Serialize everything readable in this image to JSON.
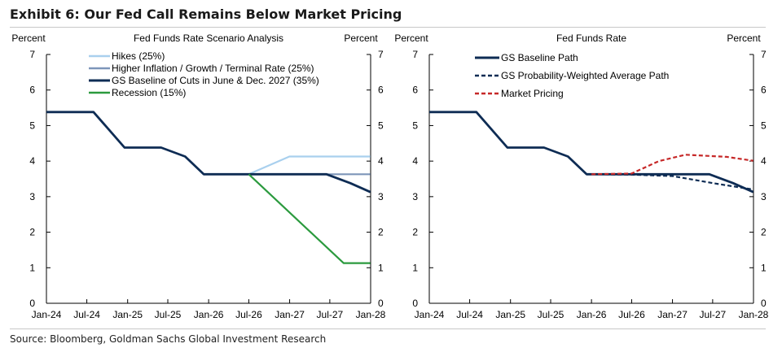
{
  "page": {
    "title": "Exhibit 6: Our Fed Call Remains Below Market Pricing",
    "source": "Source: Bloomberg, Goldman Sachs Global Investment Research"
  },
  "chart_data": [
    {
      "type": "line",
      "title": "Fed Funds Rate Scenario Analysis",
      "ylabel_left": "Percent",
      "ylabel_right": "Percent",
      "ylim": [
        0,
        7
      ],
      "yticks": [
        0,
        1,
        2,
        3,
        4,
        5,
        6,
        7
      ],
      "xlim": [
        "2024-01-01",
        "2028-01-01"
      ],
      "xticks": [
        {
          "date": "2024-01-01",
          "label": "Jan-24"
        },
        {
          "date": "2024-07-01",
          "label": "Jul-24"
        },
        {
          "date": "2025-01-01",
          "label": "Jan-25"
        },
        {
          "date": "2025-07-01",
          "label": "Jul-25"
        },
        {
          "date": "2026-01-01",
          "label": "Jan-26"
        },
        {
          "date": "2026-07-01",
          "label": "Jul-26"
        },
        {
          "date": "2027-01-01",
          "label": "Jan-27"
        },
        {
          "date": "2027-07-01",
          "label": "Jul-27"
        },
        {
          "date": "2028-01-01",
          "label": "Jan-28"
        }
      ],
      "grid": false,
      "legend": "top-left",
      "series": [
        {
          "name": "Hikes (25%)",
          "color": "#a9d0ee",
          "style": "solid",
          "x": [
            "2026-07-01",
            "2026-12-31",
            "2027-12-31"
          ],
          "values": [
            3.63,
            4.13,
            4.13
          ]
        },
        {
          "name": "Higher Inflation / Growth / Terminal Rate (25%)",
          "color": "#7d95b9",
          "style": "solid",
          "x": [
            "2026-07-01",
            "2027-12-31"
          ],
          "values": [
            3.63,
            3.63
          ]
        },
        {
          "name": "GS Baseline of Cuts in June & Dec. 2027 (35%)",
          "color": "#0e2c54",
          "style": "solid",
          "width": 2.8,
          "x": [
            "2024-01-01",
            "2024-07-31",
            "2024-12-18",
            "2025-06-01",
            "2025-09-17",
            "2025-12-10",
            "2027-06-16",
            "2027-10-01",
            "2027-12-31"
          ],
          "values": [
            5.38,
            5.38,
            4.38,
            4.38,
            4.13,
            3.63,
            3.63,
            3.38,
            3.13
          ]
        },
        {
          "name": "Recession (15%)",
          "color": "#2b9a3e",
          "style": "solid",
          "x": [
            "2026-07-01",
            "2027-09-01",
            "2027-12-31"
          ],
          "values": [
            3.63,
            1.13,
            1.13
          ]
        }
      ]
    },
    {
      "type": "line",
      "title": "Fed Funds Rate",
      "ylabel_left": "Percent",
      "ylabel_right": "Percent",
      "ylim": [
        0,
        7
      ],
      "yticks": [
        0,
        1,
        2,
        3,
        4,
        5,
        6,
        7
      ],
      "xlim": [
        "2024-01-01",
        "2028-01-01"
      ],
      "xticks": [
        {
          "date": "2024-01-01",
          "label": "Jan-24"
        },
        {
          "date": "2024-07-01",
          "label": "Jul-24"
        },
        {
          "date": "2025-01-01",
          "label": "Jan-25"
        },
        {
          "date": "2025-07-01",
          "label": "Jul-25"
        },
        {
          "date": "2026-01-01",
          "label": "Jan-26"
        },
        {
          "date": "2026-07-01",
          "label": "Jul-26"
        },
        {
          "date": "2027-01-01",
          "label": "Jan-27"
        },
        {
          "date": "2027-07-01",
          "label": "Jul-27"
        },
        {
          "date": "2028-01-01",
          "label": "Jan-28"
        }
      ],
      "grid": false,
      "legend": "top-left",
      "series": [
        {
          "name": "GS Baseline Path",
          "color": "#0e2c54",
          "style": "solid",
          "width": 2.8,
          "x": [
            "2024-01-01",
            "2024-07-31",
            "2024-12-18",
            "2025-06-01",
            "2025-09-17",
            "2025-12-10",
            "2027-06-16",
            "2027-10-01",
            "2027-12-31"
          ],
          "values": [
            5.38,
            5.38,
            4.38,
            4.38,
            4.13,
            3.63,
            3.63,
            3.38,
            3.13
          ]
        },
        {
          "name": "GS Probability-Weighted Average Path",
          "color": "#0e2c54",
          "style": "dashed",
          "x": [
            "2026-01-01",
            "2026-07-01",
            "2027-01-01",
            "2027-07-01",
            "2027-12-31"
          ],
          "values": [
            3.63,
            3.62,
            3.58,
            3.38,
            3.2
          ]
        },
        {
          "name": "Market Pricing",
          "color": "#c62828",
          "style": "dashed",
          "x": [
            "2026-01-01",
            "2026-07-01",
            "2026-11-01",
            "2027-03-01",
            "2027-09-01",
            "2027-12-31"
          ],
          "values": [
            3.63,
            3.65,
            4.0,
            4.18,
            4.12,
            4.01
          ]
        }
      ]
    }
  ]
}
